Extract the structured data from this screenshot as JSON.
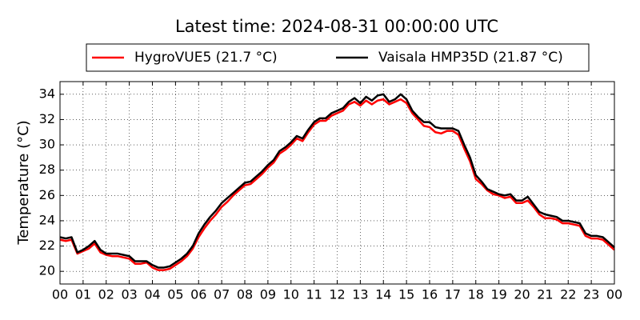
{
  "chart_data": {
    "type": "line",
    "title": "Latest time: 2024-08-31 00:00:00 UTC",
    "y_label": "Temperature (°C)",
    "x": [
      0,
      0.25,
      0.5,
      0.75,
      1,
      1.25,
      1.5,
      1.75,
      2,
      2.25,
      2.5,
      2.75,
      3,
      3.25,
      3.5,
      3.75,
      4,
      4.25,
      4.5,
      4.75,
      5,
      5.25,
      5.5,
      5.75,
      6,
      6.25,
      6.5,
      6.75,
      7,
      7.25,
      7.5,
      7.75,
      8,
      8.25,
      8.5,
      8.75,
      9,
      9.25,
      9.5,
      9.75,
      10,
      10.25,
      10.5,
      10.75,
      11,
      11.25,
      11.5,
      11.75,
      12,
      12.25,
      12.5,
      12.75,
      13,
      13.25,
      13.5,
      13.75,
      14,
      14.25,
      14.5,
      14.75,
      15,
      15.25,
      15.5,
      15.75,
      16,
      16.25,
      16.5,
      16.75,
      17,
      17.25,
      17.5,
      17.75,
      18,
      18.25,
      18.5,
      18.75,
      19,
      19.25,
      19.5,
      19.75,
      20,
      20.25,
      20.5,
      20.75,
      21,
      21.25,
      21.5,
      21.75,
      22,
      22.25,
      22.5,
      22.75,
      23,
      23.25,
      23.5,
      23.75,
      24
    ],
    "series": [
      {
        "name": "HygroVUE5 (21.7 °C)",
        "color": "#ff0000",
        "values": [
          22.5,
          22.4,
          22.5,
          21.4,
          21.6,
          21.8,
          22.2,
          21.5,
          21.3,
          21.2,
          21.2,
          21.1,
          21.0,
          20.6,
          20.6,
          20.7,
          20.3,
          20.1,
          20.1,
          20.2,
          20.5,
          20.8,
          21.2,
          21.8,
          22.7,
          23.4,
          24.0,
          24.5,
          25.1,
          25.5,
          26.0,
          26.4,
          26.8,
          26.9,
          27.3,
          27.7,
          28.2,
          28.6,
          29.3,
          29.6,
          30.0,
          30.5,
          30.3,
          31.0,
          31.6,
          31.9,
          31.9,
          32.3,
          32.5,
          32.7,
          33.2,
          33.4,
          33.1,
          33.5,
          33.2,
          33.5,
          33.6,
          33.2,
          33.4,
          33.6,
          33.3,
          32.5,
          32.0,
          31.5,
          31.4,
          31.0,
          30.9,
          31.1,
          31.1,
          30.8,
          29.7,
          28.7,
          27.3,
          26.9,
          26.4,
          26.1,
          26.0,
          25.8,
          25.9,
          25.4,
          25.4,
          25.6,
          25.1,
          24.5,
          24.2,
          24.2,
          24.1,
          23.8,
          23.8,
          23.7,
          23.6,
          22.8,
          22.6,
          22.6,
          22.5,
          22.1,
          21.7
        ]
      },
      {
        "name": "Vaisala HMP35D (21.87 °C)",
        "color": "#000000",
        "values": [
          22.7,
          22.6,
          22.7,
          21.5,
          21.7,
          22.0,
          22.4,
          21.7,
          21.4,
          21.4,
          21.4,
          21.3,
          21.2,
          20.8,
          20.8,
          20.8,
          20.5,
          20.3,
          20.3,
          20.4,
          20.7,
          21.0,
          21.4,
          22.0,
          23.0,
          23.7,
          24.3,
          24.8,
          25.4,
          25.8,
          26.2,
          26.6,
          27.0,
          27.1,
          27.5,
          27.9,
          28.4,
          28.8,
          29.5,
          29.8,
          30.2,
          30.7,
          30.5,
          31.2,
          31.8,
          32.1,
          32.1,
          32.5,
          32.7,
          32.9,
          33.4,
          33.7,
          33.3,
          33.8,
          33.5,
          33.9,
          34.0,
          33.4,
          33.6,
          34.0,
          33.6,
          32.7,
          32.2,
          31.8,
          31.8,
          31.4,
          31.3,
          31.3,
          31.3,
          31.1,
          30.0,
          29.0,
          27.6,
          27.1,
          26.5,
          26.3,
          26.1,
          26.0,
          26.1,
          25.6,
          25.6,
          25.9,
          25.3,
          24.7,
          24.5,
          24.4,
          24.3,
          24.0,
          24.0,
          23.9,
          23.8,
          23.0,
          22.8,
          22.8,
          22.7,
          22.3,
          21.9
        ]
      }
    ],
    "xlim": [
      0,
      24
    ],
    "xticks": [
      {
        "value": 0,
        "label": "00"
      },
      {
        "value": 1,
        "label": "01"
      },
      {
        "value": 2,
        "label": "02"
      },
      {
        "value": 3,
        "label": "03"
      },
      {
        "value": 4,
        "label": "04"
      },
      {
        "value": 5,
        "label": "05"
      },
      {
        "value": 6,
        "label": "06"
      },
      {
        "value": 7,
        "label": "07"
      },
      {
        "value": 8,
        "label": "08"
      },
      {
        "value": 9,
        "label": "09"
      },
      {
        "value": 10,
        "label": "10"
      },
      {
        "value": 11,
        "label": "11"
      },
      {
        "value": 12,
        "label": "12"
      },
      {
        "value": 13,
        "label": "13"
      },
      {
        "value": 14,
        "label": "14"
      },
      {
        "value": 15,
        "label": "15"
      },
      {
        "value": 16,
        "label": "16"
      },
      {
        "value": 17,
        "label": "17"
      },
      {
        "value": 18,
        "label": "18"
      },
      {
        "value": 19,
        "label": "19"
      },
      {
        "value": 20,
        "label": "20"
      },
      {
        "value": 21,
        "label": "21"
      },
      {
        "value": 22,
        "label": "22"
      },
      {
        "value": 23,
        "label": "23"
      },
      {
        "value": 24,
        "label": "00"
      }
    ],
    "ylim": [
      19,
      35
    ],
    "yticks": [
      20,
      22,
      24,
      26,
      28,
      30,
      32,
      34
    ],
    "grid": true,
    "legend": "top"
  }
}
